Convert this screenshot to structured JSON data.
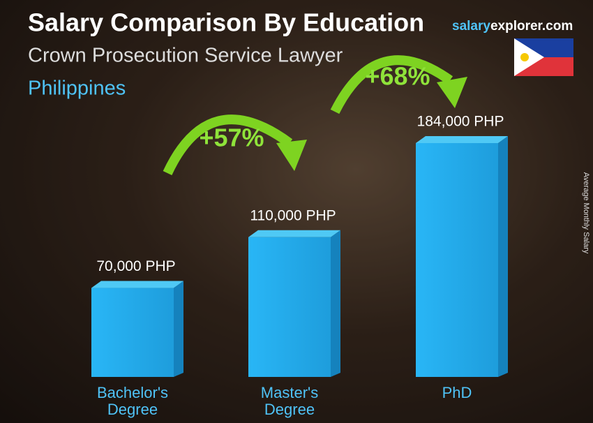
{
  "chart_data": {
    "type": "bar",
    "title": "Salary Comparison By Education",
    "subtitle": "Crown Prosecution Service Lawyer",
    "country": "Philippines",
    "brand": [
      "salary",
      "explorer.com"
    ],
    "y_label": "Average Monthly Salary",
    "categories": [
      "Bachelor's Degree",
      "Master's Degree",
      "PhD"
    ],
    "values": [
      70000,
      110000,
      184000
    ],
    "value_labels": [
      "70,000 PHP",
      "110,000 PHP",
      "184,000 PHP"
    ],
    "annotations": [
      "+57%",
      "+68%"
    ],
    "color": "#1fa8e6"
  }
}
